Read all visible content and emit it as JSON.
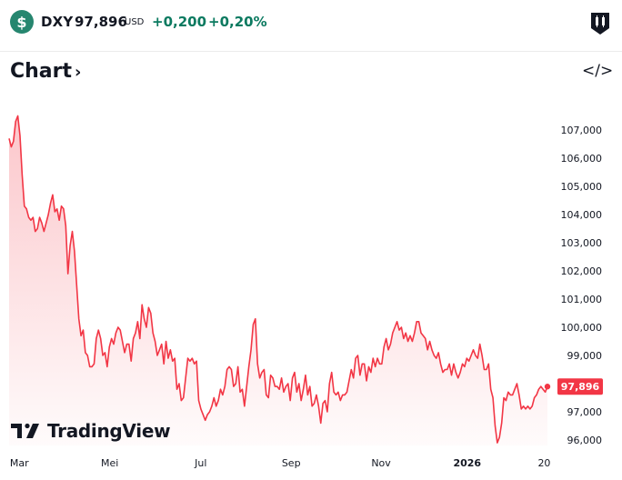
{
  "header": {
    "logo_glyph": "$",
    "symbol": "DXY",
    "price": "97,896",
    "currency": "USD",
    "change": "+0,200",
    "change_percent": "+0,20%",
    "positive_color": "#0b7a60"
  },
  "chart_title": "Chart",
  "chart_title_icon": "chevron-right-icon",
  "embed_icon": "code-icon",
  "embed_glyph": "</>",
  "brand": "TradingView",
  "line_color": "#f23645",
  "last_price_label": "97,896",
  "chart_data": {
    "type": "area",
    "series": [
      {
        "name": "DXY",
        "values": [
          106.7,
          106.4,
          106.6,
          107.3,
          107.5,
          106.8,
          105.4,
          104.3,
          104.2,
          103.9,
          103.8,
          103.9,
          103.4,
          103.5,
          103.9,
          103.7,
          103.4,
          103.7,
          104.0,
          104.4,
          104.7,
          104.1,
          104.2,
          103.8,
          104.3,
          104.2,
          103.6,
          101.9,
          102.9,
          103.4,
          102.7,
          101.5,
          100.3,
          99.7,
          99.9,
          99.1,
          99.0,
          98.6,
          98.6,
          98.7,
          99.6,
          99.9,
          99.6,
          99.0,
          99.1,
          98.6,
          99.3,
          99.6,
          99.4,
          99.8,
          100.0,
          99.9,
          99.5,
          99.1,
          99.4,
          99.4,
          98.8,
          99.6,
          99.8,
          100.2,
          99.6,
          100.8,
          100.3,
          100.0,
          100.7,
          100.5,
          99.8,
          99.5,
          99.0,
          99.2,
          99.4,
          98.7,
          99.5,
          98.9,
          99.2,
          98.8,
          98.9,
          97.8,
          98.0,
          97.4,
          97.5,
          98.2,
          98.9,
          98.8,
          98.9,
          98.7,
          98.8,
          97.4,
          97.1,
          96.9,
          96.7,
          96.9,
          97.0,
          97.2,
          97.5,
          97.2,
          97.4,
          97.8,
          97.6,
          97.9,
          98.5,
          98.6,
          98.5,
          97.9,
          98.0,
          98.6,
          97.7,
          97.8,
          97.2,
          97.9,
          98.6,
          99.2,
          100.1,
          100.3,
          98.7,
          98.2,
          98.4,
          98.5,
          97.6,
          97.5,
          98.3,
          98.2,
          97.9,
          97.9,
          97.8,
          98.2,
          97.7,
          97.9,
          98.0,
          97.4,
          98.2,
          98.4,
          97.7,
          98.0,
          97.4,
          97.8,
          98.3,
          97.6,
          97.9,
          97.2,
          97.3,
          97.6,
          97.2,
          96.6,
          97.3,
          97.4,
          97.0,
          98.0,
          98.4,
          97.7,
          97.6,
          97.7,
          97.4,
          97.6,
          97.6,
          97.7,
          98.1,
          98.5,
          98.2,
          98.9,
          99.0,
          98.3,
          98.7,
          98.7,
          98.1,
          98.6,
          98.4,
          98.9,
          98.6,
          98.9,
          98.7,
          98.7,
          99.3,
          99.6,
          99.2,
          99.4,
          99.8,
          100.0,
          100.2,
          99.9,
          100.0,
          99.6,
          99.8,
          99.5,
          99.7,
          99.5,
          99.8,
          100.2,
          100.2,
          99.8,
          99.7,
          99.6,
          99.2,
          99.5,
          99.2,
          99.0,
          98.9,
          99.1,
          98.7,
          98.4,
          98.5,
          98.5,
          98.7,
          98.3,
          98.7,
          98.4,
          98.2,
          98.4,
          98.7,
          98.6,
          98.9,
          98.8,
          99.0,
          99.2,
          99.0,
          98.9,
          99.4,
          99.0,
          98.5,
          98.5,
          98.7,
          97.8,
          97.5,
          96.5,
          95.9,
          96.1,
          96.6,
          97.5,
          97.4,
          97.7,
          97.6,
          97.6,
          97.8,
          98.0,
          97.6,
          97.1,
          97.2,
          97.1,
          97.2,
          97.1,
          97.2,
          97.5,
          97.6,
          97.8,
          97.9,
          97.8,
          97.7,
          97.9
        ],
        "last_value": 97.896
      }
    ],
    "x_ticks": [
      "Mar",
      "Mei",
      "Jul",
      "Sep",
      "Nov",
      "2026",
      "20"
    ],
    "y_ticks": [
      "96,000",
      "97,000",
      "98,000",
      "99,000",
      "100,000",
      "101,000",
      "102,000",
      "103,000",
      "104,000",
      "105,000",
      "106,000",
      "107,000"
    ],
    "ylim": [
      95.6,
      108.0
    ],
    "xlabel": "",
    "ylabel": ""
  }
}
